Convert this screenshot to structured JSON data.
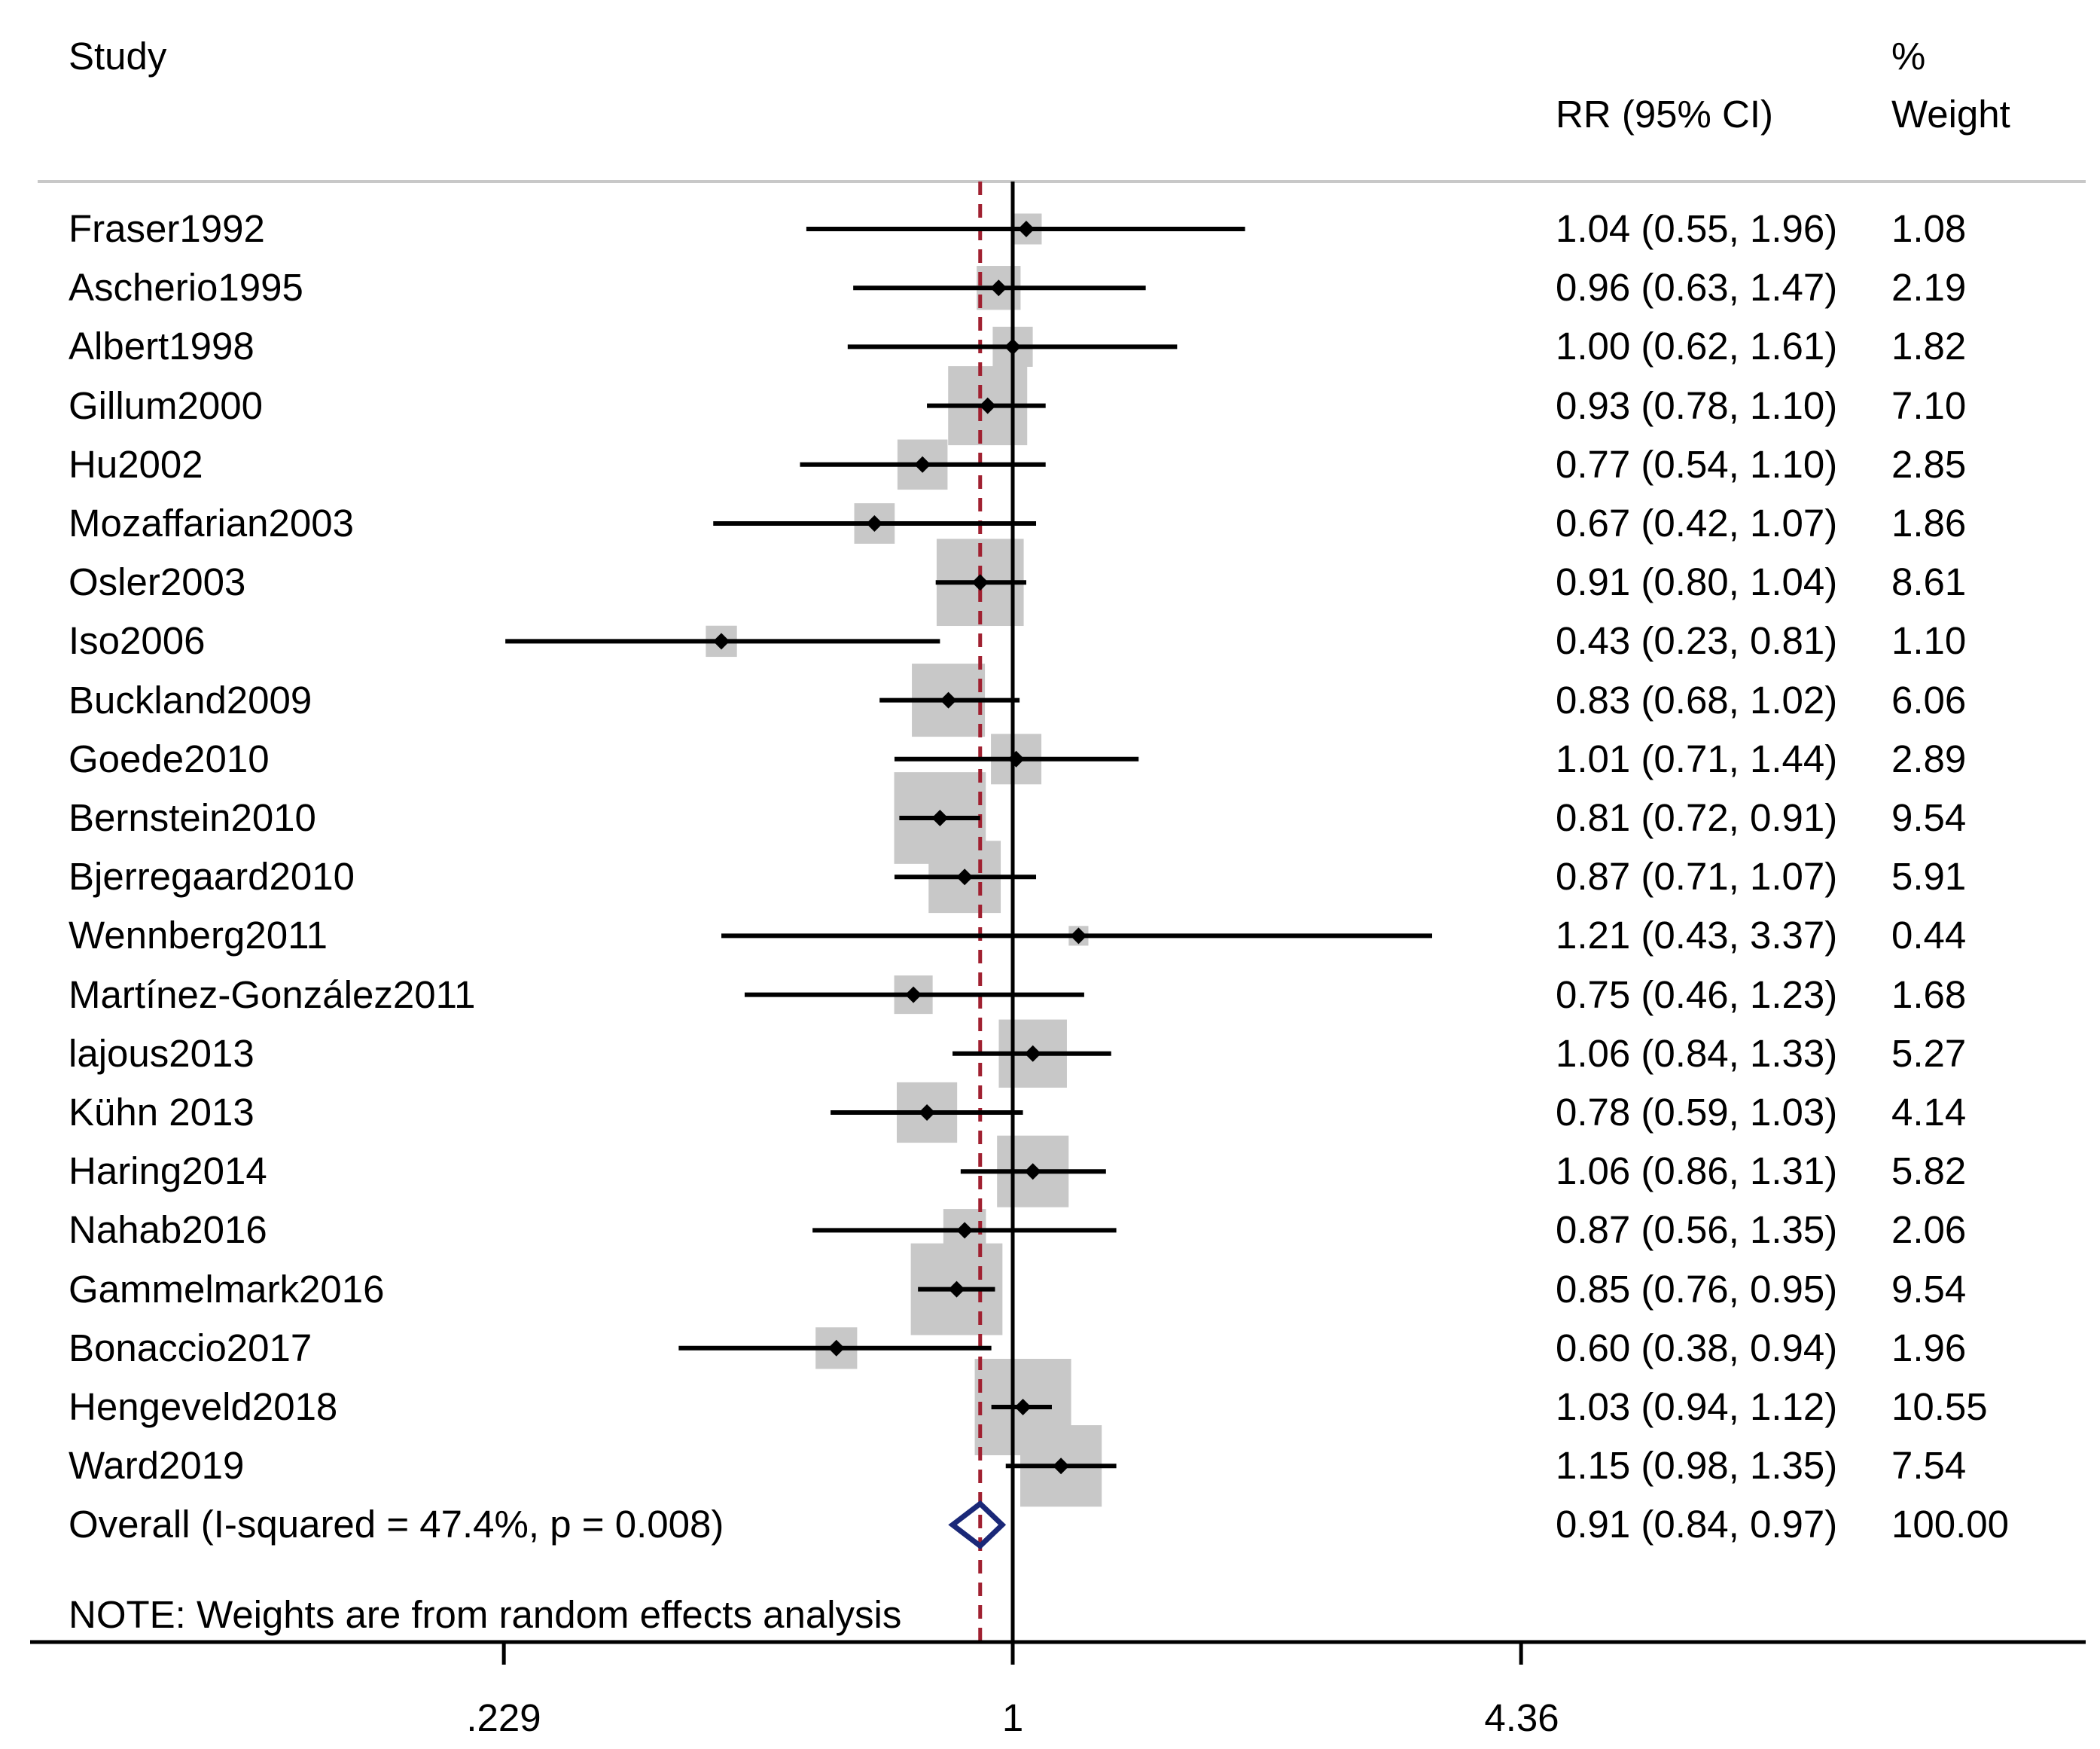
{
  "header": {
    "study": "Study",
    "effect": "RR (95% CI)",
    "weight_pct": "%",
    "weight": "Weight"
  },
  "note": "NOTE: Weights are from random effects analysis",
  "axis": {
    "ticks": [
      ".229",
      "1",
      "4.36"
    ]
  },
  "colors": {
    "ci_line": "#000000",
    "box": "#c8c8c8",
    "diamond": "#1a2878",
    "overall_line": "#a02030"
  },
  "chart_data": {
    "type": "forest",
    "scale": "log",
    "xlim": [
      0.229,
      4.36
    ],
    "x_ticks": [
      0.229,
      1,
      4.36
    ],
    "null_line": 1,
    "overall_line": 0.91,
    "studies": [
      {
        "label": "Fraser1992",
        "rr": 1.04,
        "lo": 0.55,
        "hi": 1.96,
        "ci_text": "1.04 (0.55, 1.96)",
        "weight": 1.08,
        "weight_text": "1.08"
      },
      {
        "label": "Ascherio1995",
        "rr": 0.96,
        "lo": 0.63,
        "hi": 1.47,
        "ci_text": "0.96 (0.63, 1.47)",
        "weight": 2.19,
        "weight_text": "2.19"
      },
      {
        "label": "Albert1998",
        "rr": 1.0,
        "lo": 0.62,
        "hi": 1.61,
        "ci_text": "1.00 (0.62, 1.61)",
        "weight": 1.82,
        "weight_text": "1.82"
      },
      {
        "label": "Gillum2000",
        "rr": 0.93,
        "lo": 0.78,
        "hi": 1.1,
        "ci_text": "0.93 (0.78, 1.10)",
        "weight": 7.1,
        "weight_text": "7.10"
      },
      {
        "label": "Hu2002",
        "rr": 0.77,
        "lo": 0.54,
        "hi": 1.1,
        "ci_text": "0.77 (0.54, 1.10)",
        "weight": 2.85,
        "weight_text": "2.85"
      },
      {
        "label": "Mozaffarian2003",
        "rr": 0.67,
        "lo": 0.42,
        "hi": 1.07,
        "ci_text": "0.67 (0.42, 1.07)",
        "weight": 1.86,
        "weight_text": "1.86"
      },
      {
        "label": "Osler2003",
        "rr": 0.91,
        "lo": 0.8,
        "hi": 1.04,
        "ci_text": "0.91 (0.80, 1.04)",
        "weight": 8.61,
        "weight_text": "8.61"
      },
      {
        "label": "Iso2006",
        "rr": 0.43,
        "lo": 0.23,
        "hi": 0.81,
        "ci_text": "0.43 (0.23, 0.81)",
        "weight": 1.1,
        "weight_text": "1.10"
      },
      {
        "label": "Buckland2009",
        "rr": 0.83,
        "lo": 0.68,
        "hi": 1.02,
        "ci_text": "0.83 (0.68, 1.02)",
        "weight": 6.06,
        "weight_text": "6.06"
      },
      {
        "label": "Goede2010",
        "rr": 1.01,
        "lo": 0.71,
        "hi": 1.44,
        "ci_text": "1.01 (0.71, 1.44)",
        "weight": 2.89,
        "weight_text": "2.89"
      },
      {
        "label": "Bernstein2010",
        "rr": 0.81,
        "lo": 0.72,
        "hi": 0.91,
        "ci_text": "0.81 (0.72, 0.91)",
        "weight": 9.54,
        "weight_text": "9.54"
      },
      {
        "label": "Bjerregaard2010",
        "rr": 0.87,
        "lo": 0.71,
        "hi": 1.07,
        "ci_text": "0.87 (0.71, 1.07)",
        "weight": 5.91,
        "weight_text": "5.91"
      },
      {
        "label": "Wennberg2011",
        "rr": 1.21,
        "lo": 0.43,
        "hi": 3.37,
        "ci_text": "1.21 (0.43, 3.37)",
        "weight": 0.44,
        "weight_text": "0.44"
      },
      {
        "label": "Martínez-González2011",
        "rr": 0.75,
        "lo": 0.46,
        "hi": 1.23,
        "ci_text": "0.75 (0.46, 1.23)",
        "weight": 1.68,
        "weight_text": "1.68"
      },
      {
        "label": "lajous2013",
        "rr": 1.06,
        "lo": 0.84,
        "hi": 1.33,
        "ci_text": "1.06 (0.84, 1.33)",
        "weight": 5.27,
        "weight_text": "5.27"
      },
      {
        "label": "Kühn 2013",
        "rr": 0.78,
        "lo": 0.59,
        "hi": 1.03,
        "ci_text": "0.78 (0.59, 1.03)",
        "weight": 4.14,
        "weight_text": "4.14"
      },
      {
        "label": "Haring2014",
        "rr": 1.06,
        "lo": 0.86,
        "hi": 1.31,
        "ci_text": "1.06 (0.86, 1.31)",
        "weight": 5.82,
        "weight_text": "5.82"
      },
      {
        "label": "Nahab2016",
        "rr": 0.87,
        "lo": 0.56,
        "hi": 1.35,
        "ci_text": "0.87 (0.56, 1.35)",
        "weight": 2.06,
        "weight_text": "2.06"
      },
      {
        "label": "Gammelmark2016",
        "rr": 0.85,
        "lo": 0.76,
        "hi": 0.95,
        "ci_text": "0.85 (0.76, 0.95)",
        "weight": 9.54,
        "weight_text": "9.54"
      },
      {
        "label": "Bonaccio2017",
        "rr": 0.6,
        "lo": 0.38,
        "hi": 0.94,
        "ci_text": "0.60 (0.38, 0.94)",
        "weight": 1.96,
        "weight_text": "1.96"
      },
      {
        "label": "Hengeveld2018",
        "rr": 1.03,
        "lo": 0.94,
        "hi": 1.12,
        "ci_text": "1.03 (0.94, 1.12)",
        "weight": 10.55,
        "weight_text": "10.55"
      },
      {
        "label": "Ward2019",
        "rr": 1.15,
        "lo": 0.98,
        "hi": 1.35,
        "ci_text": "1.15 (0.98, 1.35)",
        "weight": 7.54,
        "weight_text": "7.54"
      }
    ],
    "overall": {
      "label": "Overall  (I-squared = 47.4%, p = 0.008)",
      "rr": 0.91,
      "lo": 0.84,
      "hi": 0.97,
      "ci_text": "0.91 (0.84, 0.97)",
      "weight_text": "100.00"
    }
  }
}
